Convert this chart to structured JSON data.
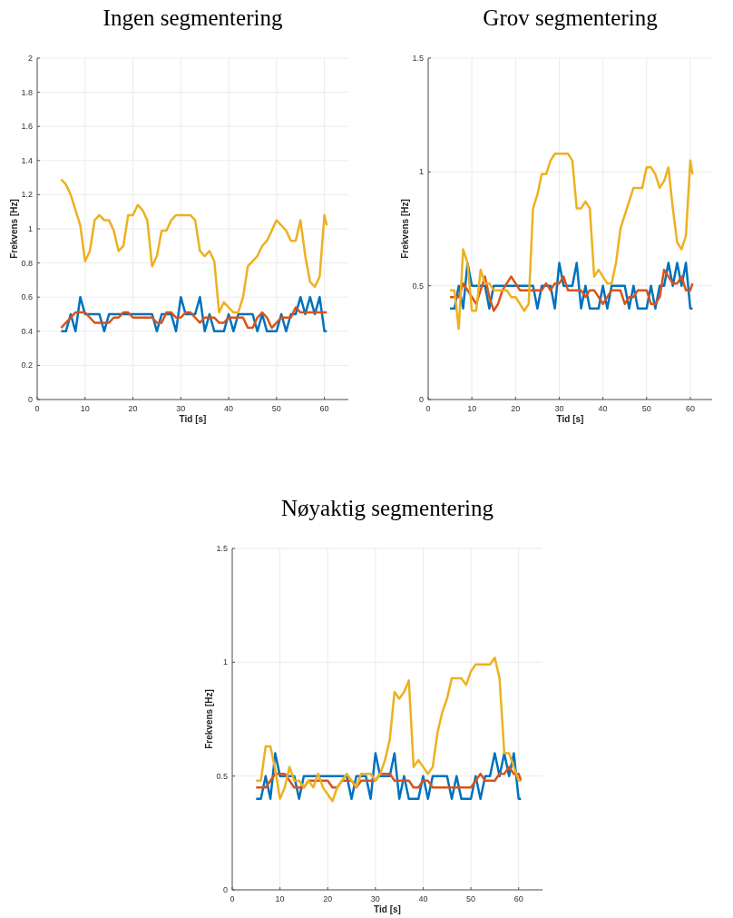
{
  "chart_data": [
    {
      "type": "line",
      "title": "Ingen segmentering",
      "xlabel": "Tid [s]",
      "ylabel": "Frekvens [Hz]",
      "xlim": [
        0,
        65
      ],
      "xticks": [
        0,
        10,
        20,
        30,
        40,
        50,
        60
      ],
      "ylim": [
        0,
        2
      ],
      "yticks": [
        0,
        0.2,
        0.4,
        0.6,
        0.8,
        1,
        1.2,
        1.4,
        1.6,
        1.8,
        2
      ],
      "grid": true,
      "x": [
        5,
        6,
        7,
        8,
        9,
        10,
        11,
        12,
        13,
        14,
        15,
        16,
        17,
        18,
        19,
        20,
        21,
        22,
        23,
        24,
        25,
        26,
        27,
        28,
        29,
        30,
        31,
        32,
        33,
        34,
        35,
        36,
        37,
        38,
        39,
        40,
        41,
        42,
        43,
        44,
        45,
        46,
        47,
        48,
        49,
        50,
        51,
        52,
        53,
        54,
        55,
        56,
        57,
        58,
        59,
        60,
        60.5
      ],
      "series": [
        {
          "color": "#0072bd",
          "values": [
            0.4,
            0.4,
            0.5,
            0.4,
            0.6,
            0.5,
            0.5,
            0.5,
            0.5,
            0.4,
            0.5,
            0.5,
            0.5,
            0.5,
            0.5,
            0.5,
            0.5,
            0.5,
            0.5,
            0.5,
            0.4,
            0.5,
            0.5,
            0.5,
            0.4,
            0.6,
            0.5,
            0.5,
            0.5,
            0.6,
            0.4,
            0.5,
            0.4,
            0.4,
            0.4,
            0.5,
            0.4,
            0.5,
            0.5,
            0.5,
            0.5,
            0.4,
            0.5,
            0.4,
            0.4,
            0.4,
            0.5,
            0.4,
            0.5,
            0.5,
            0.6,
            0.5,
            0.6,
            0.5,
            0.6,
            0.4,
            0.4
          ]
        },
        {
          "color": "#d95319",
          "values": [
            0.42,
            0.45,
            0.48,
            0.51,
            0.51,
            0.51,
            0.48,
            0.45,
            0.45,
            0.45,
            0.45,
            0.48,
            0.48,
            0.51,
            0.51,
            0.48,
            0.48,
            0.48,
            0.48,
            0.48,
            0.45,
            0.45,
            0.51,
            0.51,
            0.48,
            0.48,
            0.51,
            0.51,
            0.48,
            0.45,
            0.48,
            0.48,
            0.48,
            0.45,
            0.45,
            0.48,
            0.48,
            0.48,
            0.48,
            0.42,
            0.42,
            0.48,
            0.51,
            0.48,
            0.42,
            0.45,
            0.48,
            0.48,
            0.48,
            0.54,
            0.51,
            0.51,
            0.51,
            0.51,
            0.51,
            0.51,
            0.51
          ]
        },
        {
          "color": "#edb120",
          "values": [
            1.29,
            1.26,
            1.2,
            1.11,
            1.02,
            0.81,
            0.87,
            1.05,
            1.08,
            1.05,
            1.05,
            0.99,
            0.87,
            0.9,
            1.08,
            1.08,
            1.14,
            1.11,
            1.05,
            0.78,
            0.84,
            0.99,
            0.99,
            1.05,
            1.08,
            1.08,
            1.08,
            1.08,
            1.05,
            0.87,
            0.84,
            0.87,
            0.81,
            0.51,
            0.57,
            0.54,
            0.51,
            0.51,
            0.6,
            0.78,
            0.81,
            0.84,
            0.9,
            0.93,
            0.99,
            1.05,
            1.02,
            0.99,
            0.93,
            0.93,
            1.05,
            0.84,
            0.69,
            0.66,
            0.72,
            1.08,
            1.02
          ]
        }
      ]
    },
    {
      "type": "line",
      "title": "Grov segmentering",
      "xlabel": "Tid [s]",
      "ylabel": "Frekvens [Hz]",
      "xlim": [
        0,
        65
      ],
      "xticks": [
        0,
        10,
        20,
        30,
        40,
        50,
        60
      ],
      "ylim": [
        0,
        1.5
      ],
      "yticks": [
        0,
        0.5,
        1,
        1.5
      ],
      "grid": true,
      "x": [
        5,
        6,
        7,
        8,
        9,
        10,
        11,
        12,
        13,
        14,
        15,
        16,
        17,
        18,
        19,
        20,
        21,
        22,
        23,
        24,
        25,
        26,
        27,
        28,
        29,
        30,
        31,
        32,
        33,
        34,
        35,
        36,
        37,
        38,
        39,
        40,
        41,
        42,
        43,
        44,
        45,
        46,
        47,
        48,
        49,
        50,
        51,
        52,
        53,
        54,
        55,
        56,
        57,
        58,
        59,
        60,
        60.5
      ],
      "series": [
        {
          "color": "#0072bd",
          "values": [
            0.4,
            0.4,
            0.5,
            0.4,
            0.6,
            0.5,
            0.5,
            0.5,
            0.5,
            0.4,
            0.5,
            0.5,
            0.5,
            0.5,
            0.5,
            0.5,
            0.5,
            0.5,
            0.5,
            0.5,
            0.4,
            0.5,
            0.5,
            0.5,
            0.4,
            0.6,
            0.5,
            0.5,
            0.5,
            0.6,
            0.4,
            0.5,
            0.4,
            0.4,
            0.4,
            0.5,
            0.4,
            0.5,
            0.5,
            0.5,
            0.5,
            0.4,
            0.5,
            0.4,
            0.4,
            0.4,
            0.5,
            0.4,
            0.5,
            0.5,
            0.6,
            0.5,
            0.6,
            0.5,
            0.6,
            0.4,
            0.4
          ]
        },
        {
          "color": "#d95319",
          "values": [
            0.45,
            0.45,
            0.45,
            0.51,
            0.48,
            0.45,
            0.42,
            0.48,
            0.54,
            0.45,
            0.39,
            0.42,
            0.48,
            0.51,
            0.54,
            0.51,
            0.48,
            0.48,
            0.48,
            0.48,
            0.48,
            0.48,
            0.51,
            0.48,
            0.51,
            0.51,
            0.54,
            0.48,
            0.48,
            0.48,
            0.48,
            0.45,
            0.48,
            0.48,
            0.45,
            0.42,
            0.45,
            0.48,
            0.48,
            0.48,
            0.42,
            0.45,
            0.45,
            0.48,
            0.48,
            0.48,
            0.42,
            0.42,
            0.45,
            0.57,
            0.54,
            0.51,
            0.51,
            0.54,
            0.48,
            0.48,
            0.51
          ]
        },
        {
          "color": "#edb120",
          "values": [
            0.48,
            0.48,
            0.31,
            0.66,
            0.6,
            0.39,
            0.39,
            0.57,
            0.51,
            0.51,
            0.48,
            0.48,
            0.48,
            0.48,
            0.45,
            0.45,
            0.42,
            0.39,
            0.42,
            0.84,
            0.9,
            0.99,
            0.99,
            1.05,
            1.08,
            1.08,
            1.08,
            1.08,
            1.05,
            0.84,
            0.84,
            0.87,
            0.84,
            0.54,
            0.57,
            0.54,
            0.51,
            0.51,
            0.6,
            0.75,
            0.81,
            0.87,
            0.93,
            0.93,
            0.93,
            1.02,
            1.02,
            0.99,
            0.93,
            0.96,
            1.02,
            0.84,
            0.69,
            0.66,
            0.72,
            1.05,
            0.99
          ]
        }
      ]
    },
    {
      "type": "line",
      "title": "Nøyaktig segmentering",
      "xlabel": "Tid [s]",
      "ylabel": "Frekvens [Hz]",
      "xlim": [
        0,
        65
      ],
      "xticks": [
        0,
        10,
        20,
        30,
        40,
        50,
        60
      ],
      "ylim": [
        0,
        1.5
      ],
      "yticks": [
        0,
        0.5,
        1,
        1.5
      ],
      "grid": true,
      "x": [
        5,
        6,
        7,
        8,
        9,
        10,
        11,
        12,
        13,
        14,
        15,
        16,
        17,
        18,
        19,
        20,
        21,
        22,
        23,
        24,
        25,
        26,
        27,
        28,
        29,
        30,
        31,
        32,
        33,
        34,
        35,
        36,
        37,
        38,
        39,
        40,
        41,
        42,
        43,
        44,
        45,
        46,
        47,
        48,
        49,
        50,
        51,
        52,
        53,
        54,
        55,
        56,
        57,
        58,
        59,
        60,
        60.5
      ],
      "series": [
        {
          "color": "#0072bd",
          "values": [
            0.4,
            0.4,
            0.5,
            0.4,
            0.6,
            0.5,
            0.5,
            0.5,
            0.5,
            0.4,
            0.5,
            0.5,
            0.5,
            0.5,
            0.5,
            0.5,
            0.5,
            0.5,
            0.5,
            0.5,
            0.4,
            0.5,
            0.5,
            0.5,
            0.4,
            0.6,
            0.5,
            0.5,
            0.5,
            0.6,
            0.4,
            0.5,
            0.4,
            0.4,
            0.4,
            0.5,
            0.4,
            0.5,
            0.5,
            0.5,
            0.5,
            0.4,
            0.5,
            0.4,
            0.4,
            0.4,
            0.5,
            0.4,
            0.5,
            0.5,
            0.6,
            0.5,
            0.6,
            0.5,
            0.6,
            0.4,
            0.4
          ]
        },
        {
          "color": "#d95319",
          "values": [
            0.45,
            0.45,
            0.45,
            0.48,
            0.51,
            0.51,
            0.51,
            0.48,
            0.45,
            0.45,
            0.45,
            0.48,
            0.48,
            0.48,
            0.48,
            0.48,
            0.45,
            0.45,
            0.48,
            0.48,
            0.48,
            0.45,
            0.48,
            0.48,
            0.48,
            0.48,
            0.51,
            0.51,
            0.51,
            0.48,
            0.48,
            0.48,
            0.48,
            0.45,
            0.45,
            0.48,
            0.48,
            0.45,
            0.45,
            0.45,
            0.45,
            0.45,
            0.45,
            0.45,
            0.45,
            0.45,
            0.48,
            0.51,
            0.48,
            0.48,
            0.48,
            0.51,
            0.51,
            0.54,
            0.51,
            0.51,
            0.48
          ]
        },
        {
          "color": "#edb120",
          "values": [
            0.48,
            0.48,
            0.63,
            0.63,
            0.53,
            0.4,
            0.45,
            0.54,
            0.48,
            0.48,
            0.45,
            0.48,
            0.45,
            0.51,
            0.45,
            0.42,
            0.39,
            0.45,
            0.48,
            0.51,
            0.48,
            0.45,
            0.51,
            0.51,
            0.51,
            0.48,
            0.51,
            0.57,
            0.66,
            0.87,
            0.84,
            0.87,
            0.92,
            0.54,
            0.57,
            0.54,
            0.51,
            0.54,
            0.69,
            0.78,
            0.84,
            0.93,
            0.93,
            0.93,
            0.9,
            0.96,
            0.99,
            0.99,
            0.99,
            0.99,
            1.02,
            0.93,
            0.6,
            0.6,
            0.54,
            0.48,
            0.48
          ]
        }
      ]
    }
  ]
}
